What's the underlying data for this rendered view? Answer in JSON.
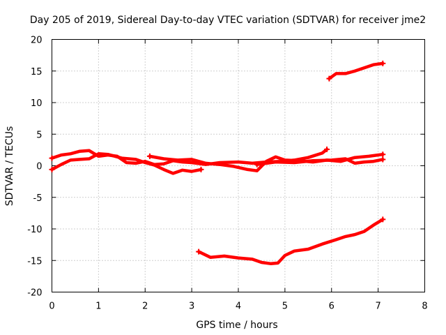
{
  "chart_data": {
    "type": "scatter",
    "title": "Day 205 of 2019, Sidereal Day-to-day VTEC variation (SDTVAR) for receiver jme2",
    "xlabel": "GPS time / hours",
    "ylabel": "SDTVAR / TECUs",
    "xlim": [
      0,
      8
    ],
    "ylim": [
      -20,
      20
    ],
    "xticks": [
      0,
      1,
      2,
      3,
      4,
      5,
      6,
      7,
      8
    ],
    "yticks": [
      -20,
      -15,
      -10,
      -5,
      0,
      5,
      10,
      15,
      20
    ],
    "grid": true,
    "marker": "plus",
    "color": "#ff0000",
    "series": [
      {
        "name": "track-upper",
        "x": [
          5.95,
          6.1,
          6.3,
          6.5,
          6.7,
          6.9,
          7.1
        ],
        "y": [
          13.8,
          14.6,
          14.6,
          15.0,
          15.5,
          16.0,
          16.2
        ]
      },
      {
        "name": "track-lower",
        "x": [
          3.15,
          3.4,
          3.7,
          4.0,
          4.3,
          4.5,
          4.7,
          4.85,
          5.0,
          5.2,
          5.5,
          5.8,
          6.1,
          6.3,
          6.5,
          6.7,
          6.9,
          7.1
        ],
        "y": [
          -13.6,
          -14.5,
          -14.3,
          -14.6,
          -14.8,
          -15.3,
          -15.5,
          -15.4,
          -14.2,
          -13.5,
          -13.2,
          -12.4,
          -11.7,
          -11.2,
          -10.9,
          -10.4,
          -9.4,
          -8.5
        ]
      },
      {
        "name": "track-near-zero-a",
        "x": [
          0,
          0.2,
          0.4,
          0.6,
          0.8,
          1.0,
          1.2,
          1.4,
          1.6,
          1.8,
          2.0,
          2.2,
          2.4,
          2.6,
          2.8,
          3.0,
          3.3,
          3.6,
          4.0,
          4.3,
          4.6,
          4.9,
          5.2,
          5.5,
          5.8,
          5.9
        ],
        "y": [
          1.2,
          1.7,
          1.9,
          2.3,
          2.4,
          1.5,
          1.7,
          1.5,
          0.5,
          0.4,
          0.7,
          0.2,
          0.3,
          0.8,
          0.6,
          0.5,
          0.2,
          0.5,
          0.6,
          0.4,
          0.6,
          0.7,
          0.9,
          1.3,
          2.0,
          2.6
        ]
      },
      {
        "name": "track-near-zero-b",
        "x": [
          0,
          0.2,
          0.4,
          0.6,
          0.8,
          1.0,
          1.2,
          1.5,
          1.8,
          2.0,
          2.2,
          2.4,
          2.6,
          2.8,
          3.0,
          3.2
        ],
        "y": [
          -0.6,
          0.2,
          0.9,
          1.0,
          1.1,
          1.9,
          1.8,
          1.2,
          1.0,
          0.5,
          0.1,
          -0.6,
          -1.2,
          -0.7,
          -0.9,
          -0.6
        ]
      },
      {
        "name": "track-near-zero-c",
        "x": [
          2.1,
          2.4,
          2.7,
          3.0,
          3.3,
          3.6,
          3.9,
          4.2,
          4.4,
          4.6,
          4.8,
          5.0,
          5.3,
          5.6,
          5.9,
          6.2,
          6.5,
          6.8,
          7.1
        ],
        "y": [
          1.5,
          1.1,
          0.9,
          1.0,
          0.4,
          0.2,
          -0.1,
          -0.6,
          -0.8,
          0.7,
          1.4,
          0.9,
          0.8,
          0.6,
          0.9,
          0.7,
          1.3,
          1.5,
          1.8
        ]
      },
      {
        "name": "track-near-zero-d",
        "x": [
          4.4,
          4.8,
          5.2,
          5.6,
          6.0,
          6.3,
          6.5,
          6.7,
          6.9,
          7.1
        ],
        "y": [
          0.2,
          0.6,
          0.5,
          0.8,
          0.9,
          1.1,
          0.4,
          0.6,
          0.7,
          1.0
        ]
      }
    ]
  }
}
